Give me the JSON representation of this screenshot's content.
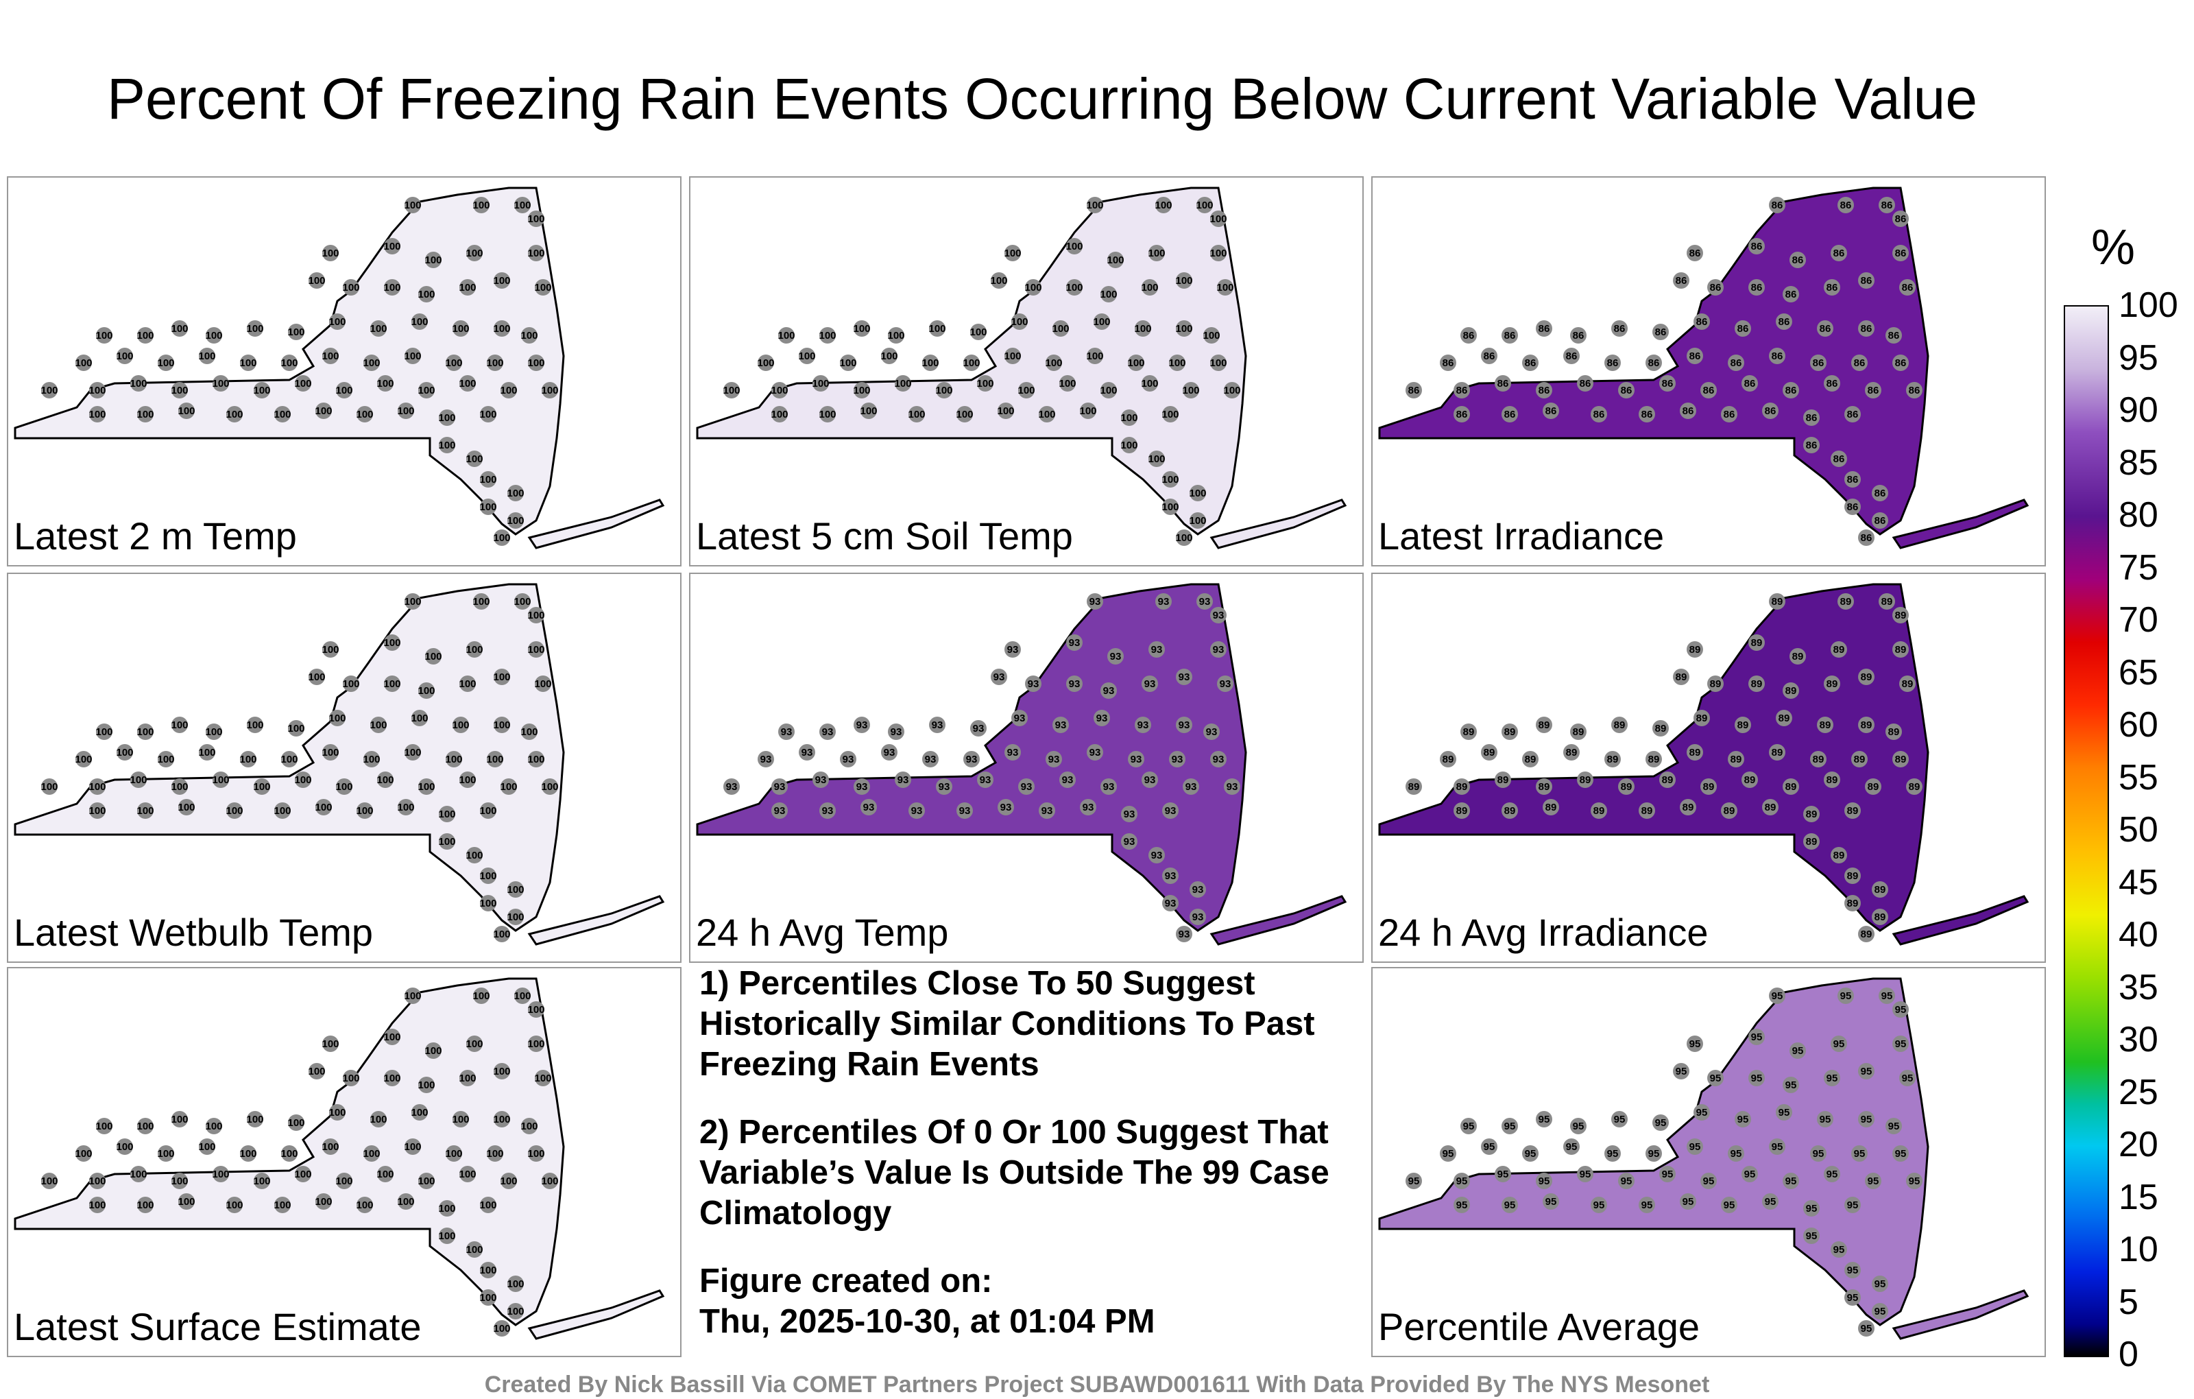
{
  "title": "Percent Of Freezing Rain Events Occurring Below Current Variable Value",
  "panels": [
    {
      "label": "Latest 2 m Temp",
      "fill": "#f1eef6",
      "station_value": "100"
    },
    {
      "label": "Latest 5 cm Soil Temp",
      "fill": "#ece6f3",
      "station_value": "100"
    },
    {
      "label": "Latest Irradiance",
      "fill": "#6a1a9a",
      "station_value": "86"
    },
    {
      "label": "Latest Wetbulb Temp",
      "fill": "#f1eef6",
      "station_value": "100"
    },
    {
      "label": "24 h Avg Temp",
      "fill": "#7a3aa8",
      "station_value": "93"
    },
    {
      "label": "24 h Avg Irradiance",
      "fill": "#5a1490",
      "station_value": "89"
    },
    {
      "label": "Latest Surface Estimate",
      "fill": "#f1eef6",
      "station_value": "100"
    },
    {
      "label": "Percentile Average",
      "fill": "#a77bc8",
      "station_value": "95"
    }
  ],
  "notes": {
    "line1": "1) Percentiles Close To 50 Suggest Historically Similar Conditions To Past Freezing Rain Events",
    "line2": "2) Percentiles Of 0 Or 100 Suggest That Variable’s Value Is Outside The 99 Case Climatology",
    "created_label": "Figure created on:",
    "created_date": "Thu, 2025-10-30, at 01:04 PM"
  },
  "colorbar": {
    "unit": "%",
    "ticks": [
      "100",
      "95",
      "90",
      "85",
      "80",
      "75",
      "70",
      "65",
      "60",
      "55",
      "50",
      "45",
      "40",
      "35",
      "30",
      "25",
      "20",
      "15",
      "10",
      "5",
      "0"
    ]
  },
  "footer": "Created By Nick Bassill Via COMET Partners Project SUBAWD001611 With Data Provided By The NYS Mesonet"
}
